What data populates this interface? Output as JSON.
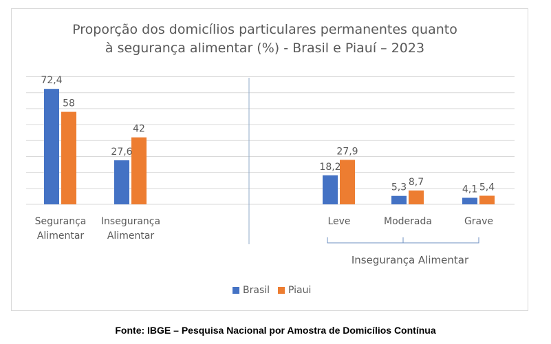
{
  "colors": {
    "brasil": "#4472C4",
    "piaui": "#ED7D31",
    "grid": "#d9d9d9",
    "text": "#595959"
  },
  "chart_data": {
    "type": "bar",
    "title_line1": "Proporção dos domicílios particulares permanentes quanto",
    "title_line2": "à segurança alimentar (%) - Brasil e Piauí  – 2023",
    "groups": [
      {
        "label_lines": [
          "Segurança",
          "Alimentar"
        ],
        "brasil": 72.4,
        "piaui": 58,
        "brasil_label": "72,4",
        "piaui_label": "58"
      },
      {
        "label_lines": [
          "Insegurança",
          "Alimentar"
        ],
        "brasil": 27.6,
        "piaui": 42,
        "brasil_label": "27,6",
        "piaui_label": "42"
      },
      {
        "label_lines": [
          "Leve"
        ],
        "brasil": 18.2,
        "piaui": 27.9,
        "brasil_label": "18,2",
        "piaui_label": "27,9"
      },
      {
        "label_lines": [
          "Moderada"
        ],
        "brasil": 5.3,
        "piaui": 8.7,
        "brasil_label": "5,3",
        "piaui_label": "8,7"
      },
      {
        "label_lines": [
          "Grave"
        ],
        "brasil": 4.1,
        "piaui": 5.4,
        "brasil_label": "4,1",
        "piaui_label": "5,4"
      }
    ],
    "bracket_label": "Insegurança Alimentar",
    "series": [
      {
        "name": "Brasil"
      },
      {
        "name": "Piauí"
      }
    ],
    "ylim": [
      0,
      80
    ],
    "grid": true
  },
  "legend": {
    "brasil": "Brasil",
    "piaui": "Piaui"
  },
  "source": "Fonte: IBGE – Pesquisa Nacional por Amostra de Domicílios Contínua"
}
